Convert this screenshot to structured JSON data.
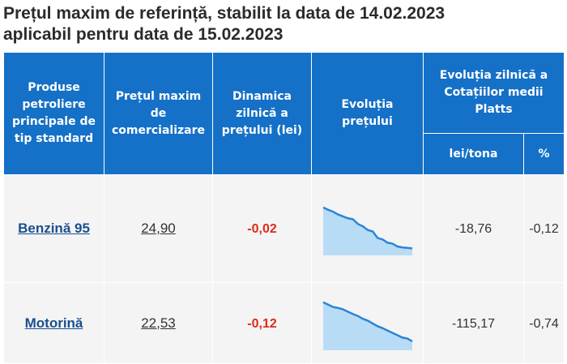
{
  "title": {
    "line1": "Prețul maxim de referință, stabilit la data de 14.02.2023",
    "line2": "aplicabil pentru data de 15.02.2023"
  },
  "table": {
    "headers": {
      "product": "Produse petroliere principale de tip standard",
      "max_price": "Prețul maxim de comercializare",
      "daily_dynamic": "Dinamica zilnică a prețului (lei)",
      "evolution": "Evoluția prețului",
      "platts_group": "Evoluția zilnică a Cotațiilor medii Platts",
      "lei_tona": "lei/tona",
      "percent": "%"
    },
    "rows": [
      {
        "product": "Benzină 95",
        "max_price": "24,90",
        "daily_dynamic": "-0,02",
        "trend": [
          0.95,
          0.9,
          0.86,
          0.8,
          0.76,
          0.72,
          0.7,
          0.6,
          0.55,
          0.47,
          0.44,
          0.3,
          0.27,
          0.2,
          0.18,
          0.12,
          0.1,
          0.09,
          0.08
        ],
        "lei_tona": "-18,76",
        "percent": "-0,12"
      },
      {
        "product": "Motorină",
        "max_price": "22,53",
        "daily_dynamic": "-0,12",
        "trend": [
          0.95,
          0.9,
          0.85,
          0.83,
          0.8,
          0.75,
          0.7,
          0.66,
          0.6,
          0.56,
          0.5,
          0.44,
          0.4,
          0.35,
          0.3,
          0.25,
          0.2,
          0.18,
          0.12
        ],
        "lei_tona": "-115,17",
        "percent": "-0,74"
      }
    ]
  },
  "colors": {
    "header_bg": "#1570c7",
    "cell_bg": "#f4f4f4",
    "link": "#1a4f8f",
    "negative": "#e02a1a",
    "spark_line": "#2a86d6",
    "spark_fill": "#b9dcf6"
  }
}
